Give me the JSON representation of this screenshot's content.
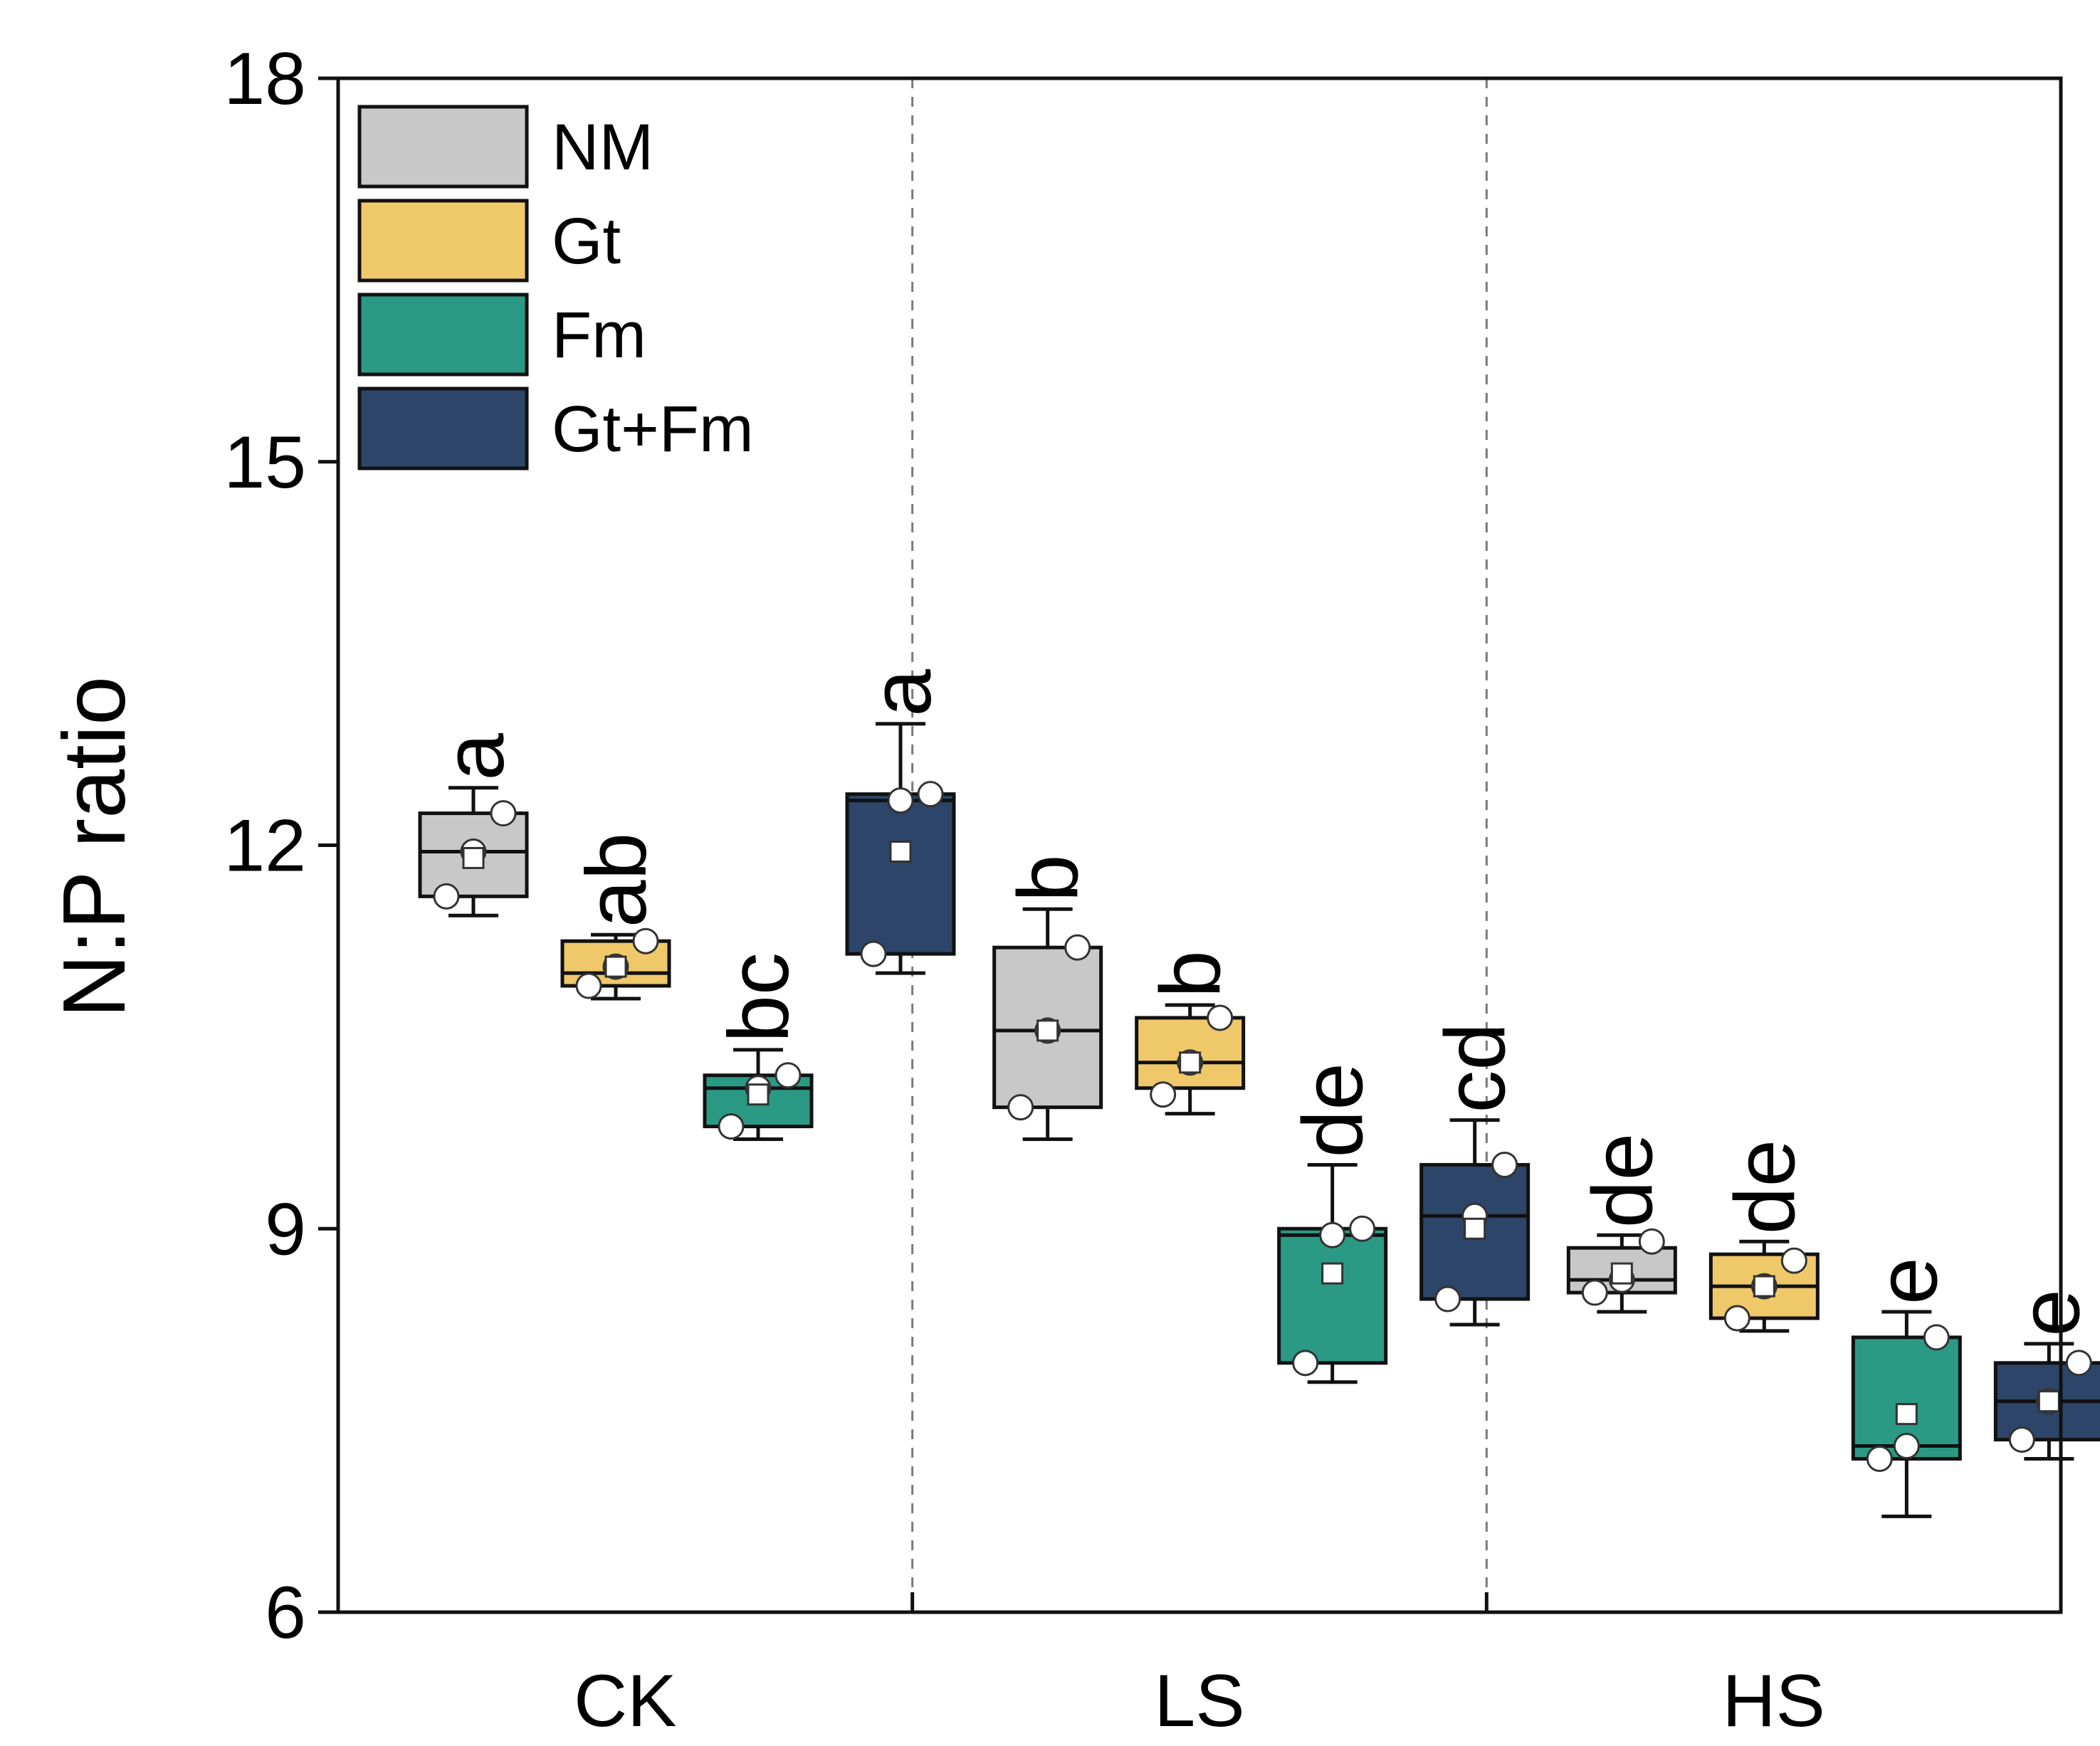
{
  "chart_data": {
    "type": "box",
    "ylabel": "N:P ratio",
    "xlabel": "",
    "ylim": [
      6,
      18
    ],
    "yticks": [
      6,
      9,
      12,
      15,
      18
    ],
    "groups": [
      "CK",
      "LS",
      "HS"
    ],
    "legend_position": "top-left",
    "series": [
      {
        "name": "NM",
        "color": "#c8c8c8"
      },
      {
        "name": "Gt",
        "color": "#efc86a"
      },
      {
        "name": "Fm",
        "color": "#2a9a85"
      },
      {
        "name": "Gt+Fm",
        "color": "#2c4568"
      }
    ],
    "boxes": [
      {
        "group": "CK",
        "series": "NM",
        "whisker_low": 11.45,
        "q1": 11.6,
        "median": 11.95,
        "q3": 12.25,
        "whisker_high": 12.45,
        "mean": 11.9,
        "points": [
          11.6,
          11.95,
          12.25
        ],
        "letter": "a"
      },
      {
        "group": "CK",
        "series": "Gt",
        "whisker_low": 10.8,
        "q1": 10.9,
        "median": 11.0,
        "q3": 11.25,
        "whisker_high": 11.3,
        "mean": 11.05,
        "points": [
          10.9,
          11.05,
          11.25
        ],
        "letter": "ab"
      },
      {
        "group": "CK",
        "series": "Fm",
        "whisker_low": 9.7,
        "q1": 9.8,
        "median": 10.1,
        "q3": 10.2,
        "whisker_high": 10.4,
        "mean": 10.05,
        "points": [
          9.8,
          10.1,
          10.2
        ],
        "letter": "bc"
      },
      {
        "group": "CK",
        "series": "Gt+Fm",
        "whisker_low": 11.0,
        "q1": 11.15,
        "median": 12.35,
        "q3": 12.4,
        "whisker_high": 12.95,
        "mean": 11.95,
        "points": [
          11.15,
          12.35,
          12.4
        ],
        "letter": "a"
      },
      {
        "group": "LS",
        "series": "NM",
        "whisker_low": 9.7,
        "q1": 9.95,
        "median": 10.55,
        "q3": 11.2,
        "whisker_high": 11.5,
        "mean": 10.55,
        "points": [
          9.95,
          10.55,
          11.2
        ],
        "letter": "b"
      },
      {
        "group": "LS",
        "series": "Gt",
        "whisker_low": 9.9,
        "q1": 10.1,
        "median": 10.3,
        "q3": 10.65,
        "whisker_high": 10.75,
        "mean": 10.3,
        "points": [
          10.05,
          10.3,
          10.65
        ],
        "letter": "b"
      },
      {
        "group": "LS",
        "series": "Fm",
        "whisker_low": 7.8,
        "q1": 7.95,
        "median": 8.95,
        "q3": 9.0,
        "whisker_high": 9.5,
        "mean": 8.65,
        "points": [
          7.95,
          8.95,
          9.0
        ],
        "letter": "de"
      },
      {
        "group": "LS",
        "series": "Gt+Fm",
        "whisker_low": 8.25,
        "q1": 8.45,
        "median": 9.1,
        "q3": 9.5,
        "whisker_high": 9.85,
        "mean": 9.0,
        "points": [
          8.45,
          9.1,
          9.5
        ],
        "letter": "cd"
      },
      {
        "group": "HS",
        "series": "NM",
        "whisker_low": 8.35,
        "q1": 8.5,
        "median": 8.6,
        "q3": 8.85,
        "whisker_high": 8.95,
        "mean": 8.65,
        "points": [
          8.5,
          8.6,
          8.9
        ],
        "letter": "de"
      },
      {
        "group": "HS",
        "series": "Gt",
        "whisker_low": 8.2,
        "q1": 8.3,
        "median": 8.55,
        "q3": 8.8,
        "whisker_high": 8.9,
        "mean": 8.55,
        "points": [
          8.3,
          8.55,
          8.75
        ],
        "letter": "de"
      },
      {
        "group": "HS",
        "series": "Fm",
        "whisker_low": 6.75,
        "q1": 7.2,
        "median": 7.3,
        "q3": 8.15,
        "whisker_high": 8.35,
        "mean": 7.55,
        "points": [
          7.2,
          7.3,
          8.15
        ],
        "letter": "e"
      },
      {
        "group": "HS",
        "series": "Gt+Fm",
        "whisker_low": 7.2,
        "q1": 7.35,
        "median": 7.65,
        "q3": 7.95,
        "whisker_high": 8.1,
        "mean": 7.65,
        "points": [
          7.35,
          7.65,
          7.95
        ],
        "letter": "e"
      }
    ]
  }
}
